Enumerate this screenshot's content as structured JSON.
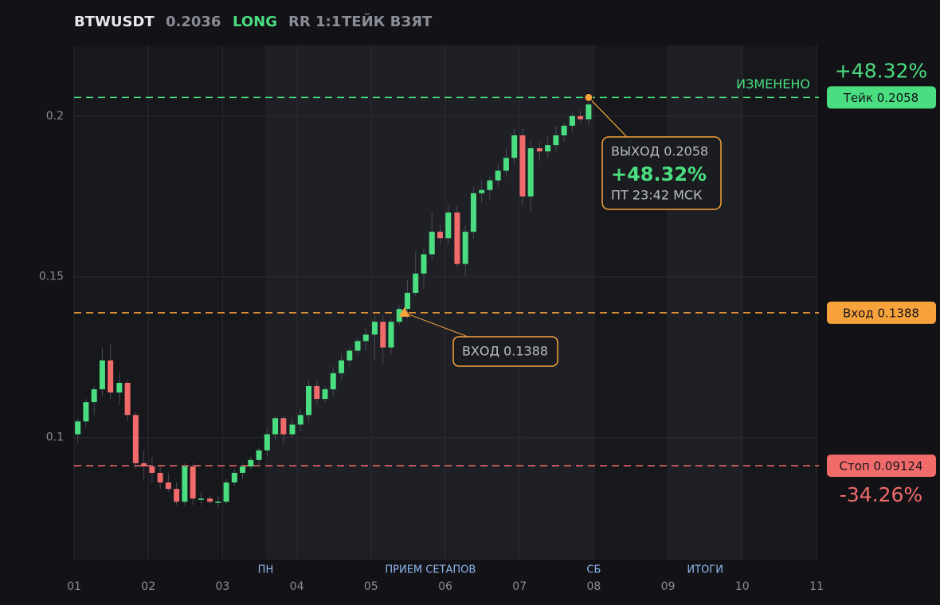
{
  "chart_data": {
    "type": "candlestick",
    "title": "BTWUSDT",
    "header": [
      "0.2036",
      "LONG",
      "RR 1:1",
      "ТЕЙК ВЗЯТ"
    ],
    "header_colors": [
      "#8a8d96",
      "#4ade80",
      "#8a8d96",
      "#8a8d96"
    ],
    "up_color": "#4ade80",
    "down_color": "#f26b6b",
    "xlim": [
      1,
      11
    ],
    "xticks": [
      {
        "value": 1,
        "label": "01"
      },
      {
        "value": 2,
        "label": "02"
      },
      {
        "value": 3,
        "label": "03"
      },
      {
        "value": 4,
        "label": "04"
      },
      {
        "value": 5,
        "label": "05"
      },
      {
        "value": 6,
        "label": "06"
      },
      {
        "value": 7,
        "label": "07"
      },
      {
        "value": 8,
        "label": "08"
      },
      {
        "value": 9,
        "label": "09"
      },
      {
        "value": 10,
        "label": "10"
      },
      {
        "value": 11,
        "label": "11"
      }
    ],
    "ylim": [
      0.062,
      0.222
    ],
    "yticks": [
      0.1,
      0.15,
      0.2
    ],
    "grid": true,
    "shaded": [
      [
        3.575,
        8.0
      ],
      [
        9.0,
        10.0
      ]
    ],
    "sessions": [
      {
        "label": "ПН",
        "x": 3.58
      },
      {
        "label": "ПРИЕМ СЕТАПОВ",
        "x": 5.8
      },
      {
        "label": "СБ",
        "x": 8.0
      },
      {
        "label": "ИТОГИ",
        "x": 9.5
      }
    ],
    "x": [
      1.05,
      1.16,
      1.27,
      1.38,
      1.49,
      1.61,
      1.72,
      1.83,
      1.94,
      2.05,
      2.16,
      2.27,
      2.38,
      2.49,
      2.6,
      2.71,
      2.83,
      2.94,
      3.05,
      3.16,
      3.27,
      3.38,
      3.49,
      3.6,
      3.71,
      3.82,
      3.94,
      4.05,
      4.16,
      4.27,
      4.38,
      4.49,
      4.6,
      4.71,
      4.82,
      4.93,
      5.05,
      5.16,
      5.27,
      5.38,
      5.49,
      5.6,
      5.71,
      5.82,
      5.93,
      6.04,
      6.16,
      6.27,
      6.38,
      6.49,
      6.6,
      6.71,
      6.82,
      6.93,
      7.04,
      7.15,
      7.27,
      7.38,
      7.49,
      7.6,
      7.71,
      7.82,
      7.93
    ],
    "open": [
      0.101,
      0.105,
      0.111,
      0.115,
      0.124,
      0.114,
      0.117,
      0.107,
      0.092,
      0.091,
      0.089,
      0.086,
      0.084,
      0.08,
      0.091,
      0.081,
      0.081,
      0.08,
      0.08,
      0.086,
      0.089,
      0.091,
      0.093,
      0.096,
      0.101,
      0.106,
      0.101,
      0.104,
      0.107,
      0.116,
      0.112,
      0.115,
      0.12,
      0.124,
      0.127,
      0.13,
      0.132,
      0.136,
      0.128,
      0.136,
      0.14,
      0.145,
      0.151,
      0.157,
      0.164,
      0.162,
      0.17,
      0.154,
      0.164,
      0.176,
      0.177,
      0.18,
      0.183,
      0.187,
      0.194,
      0.175,
      0.19,
      0.189,
      0.191,
      0.194,
      0.197,
      0.2,
      0.199
    ],
    "high": [
      0.106,
      0.112,
      0.116,
      0.128,
      0.129,
      0.12,
      0.118,
      0.108,
      0.096,
      0.094,
      0.091,
      0.089,
      0.086,
      0.092,
      0.092,
      0.083,
      0.082,
      0.082,
      0.087,
      0.09,
      0.092,
      0.094,
      0.097,
      0.103,
      0.107,
      0.107,
      0.106,
      0.109,
      0.118,
      0.118,
      0.116,
      0.122,
      0.126,
      0.128,
      0.131,
      0.134,
      0.138,
      0.138,
      0.137,
      0.141,
      0.149,
      0.158,
      0.159,
      0.17,
      0.166,
      0.172,
      0.172,
      0.166,
      0.178,
      0.18,
      0.181,
      0.185,
      0.19,
      0.196,
      0.196,
      0.192,
      0.192,
      0.194,
      0.197,
      0.198,
      0.201,
      0.202,
      0.205
    ],
    "low": [
      0.098,
      0.103,
      0.107,
      0.113,
      0.112,
      0.11,
      0.105,
      0.09,
      0.087,
      0.086,
      0.084,
      0.083,
      0.079,
      0.079,
      0.079,
      0.079,
      0.079,
      0.078,
      0.079,
      0.085,
      0.087,
      0.09,
      0.091,
      0.094,
      0.099,
      0.098,
      0.1,
      0.102,
      0.105,
      0.11,
      0.111,
      0.113,
      0.118,
      0.122,
      0.126,
      0.127,
      0.124,
      0.123,
      0.126,
      0.135,
      0.137,
      0.144,
      0.146,
      0.155,
      0.16,
      0.16,
      0.153,
      0.15,
      0.162,
      0.173,
      0.174,
      0.178,
      0.181,
      0.185,
      0.172,
      0.17,
      0.186,
      0.187,
      0.189,
      0.192,
      0.195,
      0.198,
      0.197
    ],
    "close": [
      0.105,
      0.111,
      0.115,
      0.124,
      0.114,
      0.117,
      0.107,
      0.092,
      0.091,
      0.089,
      0.086,
      0.084,
      0.08,
      0.091,
      0.081,
      0.081,
      0.08,
      0.08,
      0.086,
      0.089,
      0.091,
      0.093,
      0.096,
      0.101,
      0.106,
      0.101,
      0.104,
      0.107,
      0.116,
      0.112,
      0.115,
      0.12,
      0.124,
      0.127,
      0.13,
      0.132,
      0.136,
      0.128,
      0.136,
      0.14,
      0.145,
      0.151,
      0.157,
      0.164,
      0.162,
      0.17,
      0.154,
      0.164,
      0.176,
      0.177,
      0.18,
      0.183,
      0.187,
      0.194,
      0.175,
      0.19,
      0.189,
      0.191,
      0.194,
      0.197,
      0.2,
      0.199,
      0.2036
    ],
    "levels": [
      {
        "label": "Тейк 0.2058",
        "value": 0.2058,
        "color": "#4ade80"
      },
      {
        "label": "Вход 0.1388",
        "value": 0.1388,
        "color": "#f7a23b"
      },
      {
        "label": "Стоп 0.09124",
        "value": 0.09124,
        "color": "#f26b6b"
      }
    ],
    "take_note": "ИЗМЕНЕНО",
    "take_change": "+48.32%",
    "stop_change": "-34.26%",
    "entry": {
      "x": 5.45,
      "value": 0.1388,
      "text": "ВХОД 0.1388"
    },
    "exit": {
      "x": 7.93,
      "value": 0.2058,
      "lines": [
        "ВЫХОД 0.2058",
        "+48.32%",
        "ПТ 23:42 МСК"
      ]
    }
  }
}
